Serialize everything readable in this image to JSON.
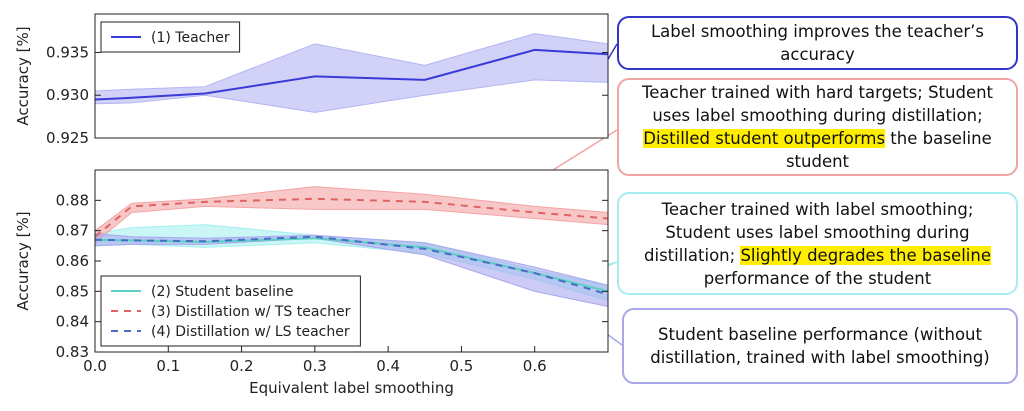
{
  "chart_data": [
    {
      "type": "line",
      "x": [
        0,
        0.05,
        0.15,
        0.3,
        0.45,
        0.6,
        0.7
      ],
      "xlim": [
        0,
        0.7
      ],
      "ylim": [
        0.925,
        0.9395
      ],
      "yticks": [
        0.925,
        {
          "value": 0.93,
          "label": "0.930"
        },
        0.935
      ],
      "ylabel": "Accuracy [%]",
      "legend": "upper left",
      "series": [
        {
          "name": "(1) Teacher",
          "color": "#3a3ad8",
          "band_color": "#b4b4f4",
          "dash": false,
          "values": [
            0.9295,
            0.9297,
            0.9302,
            0.9322,
            0.9318,
            0.9353,
            0.9348
          ],
          "upper": [
            0.9305,
            0.9307,
            0.931,
            0.936,
            0.9335,
            0.9372,
            0.936
          ],
          "lower": [
            0.929,
            0.9291,
            0.93,
            0.928,
            0.93,
            0.9318,
            0.9315
          ]
        }
      ]
    },
    {
      "type": "line",
      "x": [
        0,
        0.05,
        0.15,
        0.3,
        0.45,
        0.6,
        0.7
      ],
      "xlim": [
        0,
        0.7
      ],
      "ylim": [
        0.83,
        0.89
      ],
      "xticks": [
        {
          "value": 0,
          "label": "0.0"
        },
        0.1,
        0.2,
        0.3,
        0.4,
        0.5,
        0.6
      ],
      "yticks": [
        0.83,
        0.84,
        0.85,
        0.86,
        0.87,
        0.88
      ],
      "xlabel": "Equivalent label smoothing",
      "ylabel": "Accuracy [%]",
      "legend": "lower left",
      "series": [
        {
          "name": "(2) Student baseline",
          "color": "#5ccfc4",
          "band_color": "#a6f0f0",
          "dash": false,
          "values": [
            0.867,
            0.8668,
            0.8663,
            0.8675,
            0.8645,
            0.856,
            0.85
          ],
          "upper": [
            0.869,
            0.871,
            0.872,
            0.8685,
            0.866,
            0.857,
            0.852
          ],
          "lower": [
            0.865,
            0.8655,
            0.8645,
            0.866,
            0.8625,
            0.854,
            0.847
          ]
        },
        {
          "name": "(3) Distillation w/ TS teacher",
          "color": "#e06262",
          "band_color": "#f4a4a4",
          "dash": true,
          "values": [
            0.868,
            0.878,
            0.8795,
            0.8805,
            0.8795,
            0.876,
            0.874
          ],
          "upper": [
            0.87,
            0.879,
            0.8805,
            0.8845,
            0.882,
            0.878,
            0.876
          ],
          "lower": [
            0.866,
            0.876,
            0.878,
            0.877,
            0.877,
            0.874,
            0.872
          ]
        },
        {
          "name": "(4) Distillation w/ LS teacher",
          "color": "#4a6cc4",
          "band_color": "#a8a8ee",
          "dash": true,
          "values": [
            0.867,
            0.8668,
            0.8665,
            0.868,
            0.864,
            0.856,
            0.849
          ],
          "upper": [
            0.869,
            0.868,
            0.8675,
            0.8685,
            0.866,
            0.858,
            0.852
          ],
          "lower": [
            0.865,
            0.8655,
            0.8655,
            0.8675,
            0.862,
            0.85,
            0.845
          ]
        }
      ]
    }
  ],
  "annotations": [
    {
      "border": "#3434c8",
      "parts": [
        {
          "text": "Label smoothing improves the teacher’s accuracy",
          "highlight": false
        }
      ]
    },
    {
      "border": "#f0a4a4",
      "parts": [
        {
          "text": "Teacher trained with hard targets; Student uses label smoothing during distillation; ",
          "highlight": false
        },
        {
          "text": "Distilled student outperforms",
          "highlight": true
        },
        {
          "text": " the baseline student",
          "highlight": false
        }
      ]
    },
    {
      "border": "#a4eef0",
      "parts": [
        {
          "text": "Teacher trained with label smoothing; Student uses label smoothing during distillation; ",
          "highlight": false
        },
        {
          "text": "Slightly degrades the baseline",
          "highlight": true
        },
        {
          "text": " performance of the student",
          "highlight": false
        }
      ]
    },
    {
      "border": "#a8a8e8",
      "parts": [
        {
          "text": "Student baseline performance (without distillation, trained with label smoothing)",
          "highlight": false
        }
      ]
    }
  ]
}
